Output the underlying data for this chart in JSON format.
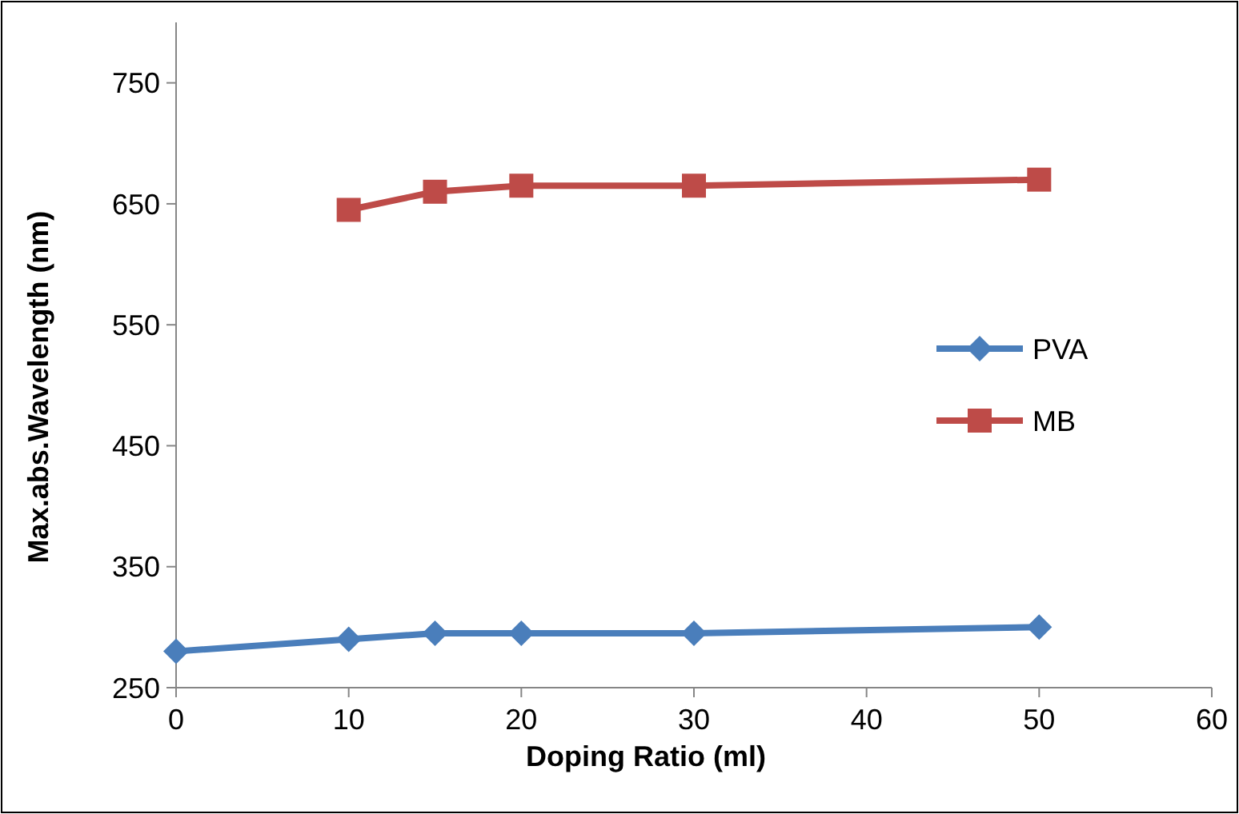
{
  "chart_data": {
    "type": "line",
    "xlabel": "Doping Ratio (ml)",
    "ylabel": "Max.abs.Wavelength (nm)",
    "x": [
      0,
      10,
      15,
      20,
      30,
      50
    ],
    "series": [
      {
        "name": "PVA",
        "color": "#4a7ebb",
        "marker": "diamond",
        "values": [
          280,
          290,
          295,
          295,
          295,
          300
        ]
      },
      {
        "name": "MB",
        "color": "#be4b48",
        "marker": "square",
        "x": [
          10,
          15,
          20,
          30,
          50
        ],
        "values": [
          645,
          660,
          665,
          665,
          670
        ]
      }
    ],
    "xlim": [
      0,
      60
    ],
    "xticks": [
      0,
      10,
      20,
      30,
      40,
      50,
      60
    ],
    "ylim": [
      250,
      800
    ],
    "yticks": [
      250,
      350,
      450,
      550,
      650,
      750
    ],
    "grid": false,
    "legend": "right"
  }
}
